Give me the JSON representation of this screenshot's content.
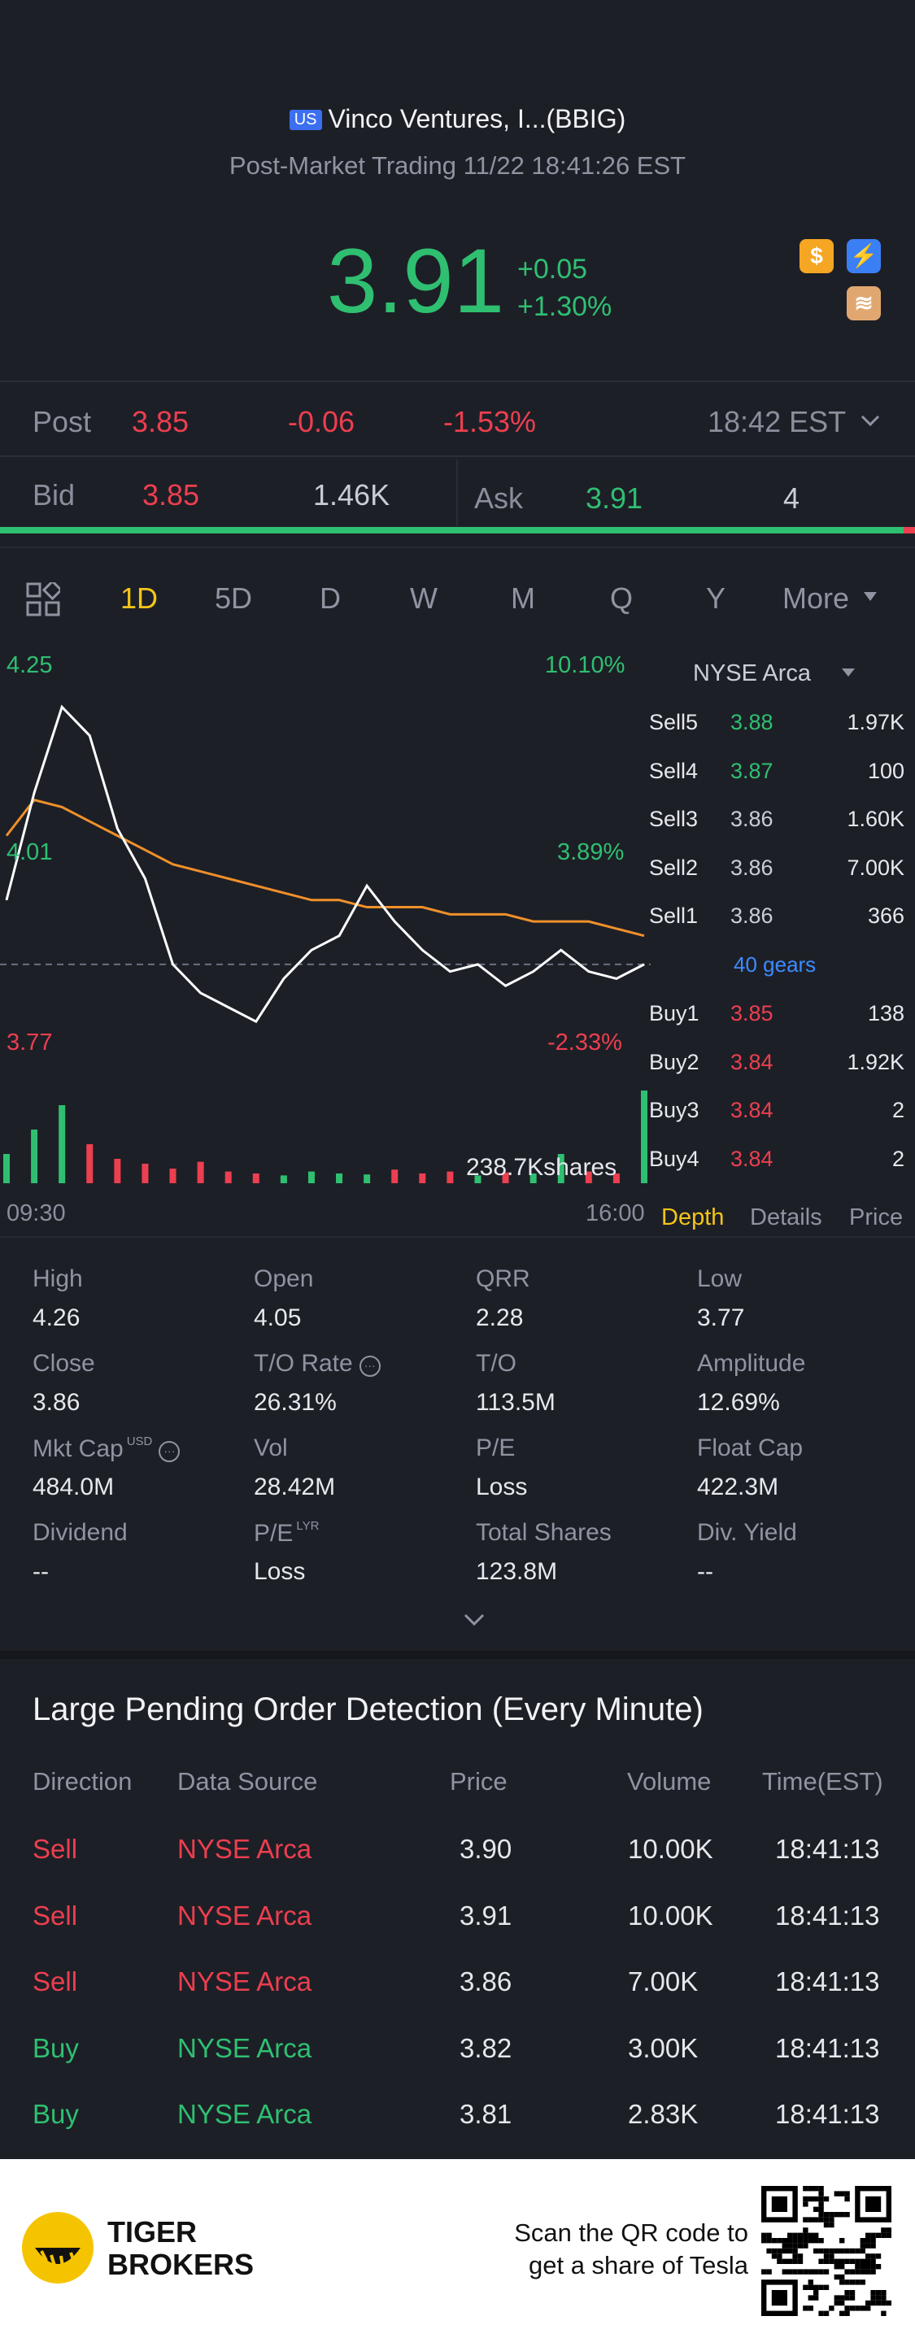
{
  "header": {
    "market_badge": "US",
    "title": "Vinco Ventures, I...(BBIG)",
    "session_line": "Post-Market Trading 11/22 18:41:26 EST",
    "price": "3.91",
    "change": "+0.05",
    "change_pct": "+1.30%"
  },
  "post": {
    "label": "Post",
    "price": "3.85",
    "change": "-0.06",
    "change_pct": "-1.53%",
    "time": "18:42 EST"
  },
  "bid_ask": {
    "bid_label": "Bid",
    "bid": "3.85",
    "bid_size": "1.46K",
    "ask_label": "Ask",
    "ask": "3.91",
    "ask_size": "4"
  },
  "tabs": [
    "1D",
    "5D",
    "D",
    "W",
    "M",
    "Q",
    "Y",
    "More"
  ],
  "active_tab": "1D",
  "chart_labels": {
    "high": "4.25",
    "high_pct": "10.10%",
    "mid": "4.01",
    "mid_pct": "3.89%",
    "low": "3.77",
    "low_pct": "-2.33%",
    "volume": "238.7Kshares",
    "start_time": "09:30",
    "end_time": "16:00"
  },
  "chart_data": {
    "type": "line",
    "x_range": [
      "09:30",
      "16:00"
    ],
    "ylim": [
      3.77,
      4.25
    ],
    "series": [
      {
        "values": [
          3.95,
          4.1,
          4.22,
          4.18,
          4.05,
          3.98,
          3.86,
          3.82,
          3.8,
          3.78,
          3.84,
          3.88,
          3.9,
          3.97,
          3.92,
          3.88,
          3.85,
          3.86,
          3.83,
          3.85,
          3.88,
          3.85,
          3.84,
          3.86
        ]
      }
    ],
    "ma_values": [
      4.04,
      4.09,
      4.08,
      4.06,
      4.04,
      4.02,
      4.0,
      3.99,
      3.98,
      3.97,
      3.96,
      3.95,
      3.95,
      3.94,
      3.94,
      3.94,
      3.93,
      3.93,
      3.93,
      3.92,
      3.92,
      3.92,
      3.91,
      3.9
    ],
    "reference": 3.86,
    "volume": [
      0.3,
      0.55,
      0.8,
      0.4,
      0.25,
      0.2,
      0.15,
      0.22,
      0.12,
      0.1,
      0.08,
      0.12,
      0.1,
      0.09,
      0.14,
      0.1,
      0.12,
      0.08,
      0.11,
      0.1,
      0.3,
      0.12,
      0.1,
      0.95
    ]
  },
  "order_book": {
    "sells": [
      {
        "label": "Sell5",
        "price": "3.88",
        "size": "1.97K"
      },
      {
        "label": "Sell4",
        "price": "3.87",
        "size": "100"
      },
      {
        "label": "Sell3",
        "price": "3.86",
        "size": "1.60K"
      },
      {
        "label": "Sell2",
        "price": "3.86",
        "size": "7.00K"
      },
      {
        "label": "Sell1",
        "price": "3.86",
        "size": "366"
      }
    ],
    "gears": "40 gears",
    "buys": [
      {
        "label": "Buy1",
        "price": "3.85",
        "size": "138"
      },
      {
        "label": "Buy2",
        "price": "3.84",
        "size": "1.92K"
      },
      {
        "label": "Buy3",
        "price": "3.84",
        "size": "2"
      },
      {
        "label": "Buy4",
        "price": "3.84",
        "size": "2"
      }
    ],
    "exchange": "NYSE Arca",
    "tabs": [
      "Depth",
      "Details",
      "Price"
    ]
  },
  "stats": {
    "high_label": "High",
    "high": "4.26",
    "open_label": "Open",
    "open": "4.05",
    "qrr_label": "QRR",
    "qrr": "2.28",
    "low_label": "Low",
    "low": "3.77",
    "close_label": "Close",
    "close": "3.86",
    "to_rate_label": "T/O Rate",
    "to_rate": "26.31%",
    "to_label": "T/O",
    "to": "113.5M",
    "amplitude_label": "Amplitude",
    "amplitude": "12.69%",
    "mktcap_label": "Mkt Cap",
    "mktcap_sup": "USD",
    "mktcap": "484.0M",
    "vol_label": "Vol",
    "vol": "28.42M",
    "pe_label": "P/E",
    "pe": "Loss",
    "floatcap_label": "Float Cap",
    "floatcap": "422.3M",
    "dividend_label": "Dividend",
    "dividend": "--",
    "pelyr_label": "P/E",
    "pelyr_sup": "LYR",
    "pelyr": "Loss",
    "totalshares_label": "Total Shares",
    "totalshares": "123.8M",
    "divyield_label": "Div. Yield",
    "divyield": "--"
  },
  "large_orders": {
    "title": "Large Pending Order Detection (Every Minute)",
    "headers": [
      "Direction",
      "Data Source",
      "Price",
      "Volume",
      "Time(EST)"
    ],
    "rows": [
      {
        "direction": "Sell",
        "source": "NYSE Arca",
        "price": "3.90",
        "volume": "10.00K",
        "time": "18:41:13"
      },
      {
        "direction": "Sell",
        "source": "NYSE Arca",
        "price": "3.91",
        "volume": "10.00K",
        "time": "18:41:13"
      },
      {
        "direction": "Sell",
        "source": "NYSE Arca",
        "price": "3.86",
        "volume": "7.00K",
        "time": "18:41:13"
      },
      {
        "direction": "Buy",
        "source": "NYSE Arca",
        "price": "3.82",
        "volume": "3.00K",
        "time": "18:41:13"
      },
      {
        "direction": "Buy",
        "source": "NYSE Arca",
        "price": "3.81",
        "volume": "2.83K",
        "time": "18:41:13"
      }
    ]
  },
  "footer": {
    "brand_line1": "TIGER",
    "brand_line2": "BROKERS",
    "cta_line1": "Scan the QR code to",
    "cta_line2": "get a share of Tesla"
  },
  "colors": {
    "up": "#2fbf71",
    "down": "#ec3f4f",
    "accent": "#f5c518",
    "ma": "#f0902a",
    "link": "#3d8bff"
  }
}
